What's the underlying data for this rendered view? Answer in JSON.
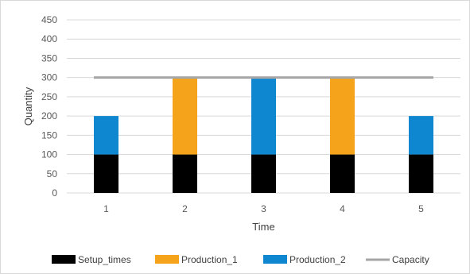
{
  "chart_data": {
    "type": "bar",
    "stacked": true,
    "categories": [
      "1",
      "2",
      "3",
      "4",
      "5"
    ],
    "series": [
      {
        "name": "Setup_times",
        "color": "#000000",
        "values": [
          100,
          100,
          100,
          100,
          100
        ]
      },
      {
        "name": "Production_1",
        "color": "#f5a31a",
        "values": [
          0,
          200,
          0,
          200,
          0
        ]
      },
      {
        "name": "Production_2",
        "color": "#0e87d0",
        "values": [
          100,
          0,
          200,
          0,
          100
        ]
      }
    ],
    "lines": [
      {
        "name": "Capacity",
        "color": "#a6a6a6",
        "values": [
          300,
          300,
          300,
          300,
          300
        ]
      }
    ],
    "xlabel": "Time",
    "ylabel": "Quantity",
    "ylim": [
      0,
      450
    ],
    "yticks": [
      0,
      50,
      100,
      150,
      200,
      250,
      300,
      350,
      400,
      450
    ],
    "grid": true,
    "legend_position": "bottom"
  }
}
